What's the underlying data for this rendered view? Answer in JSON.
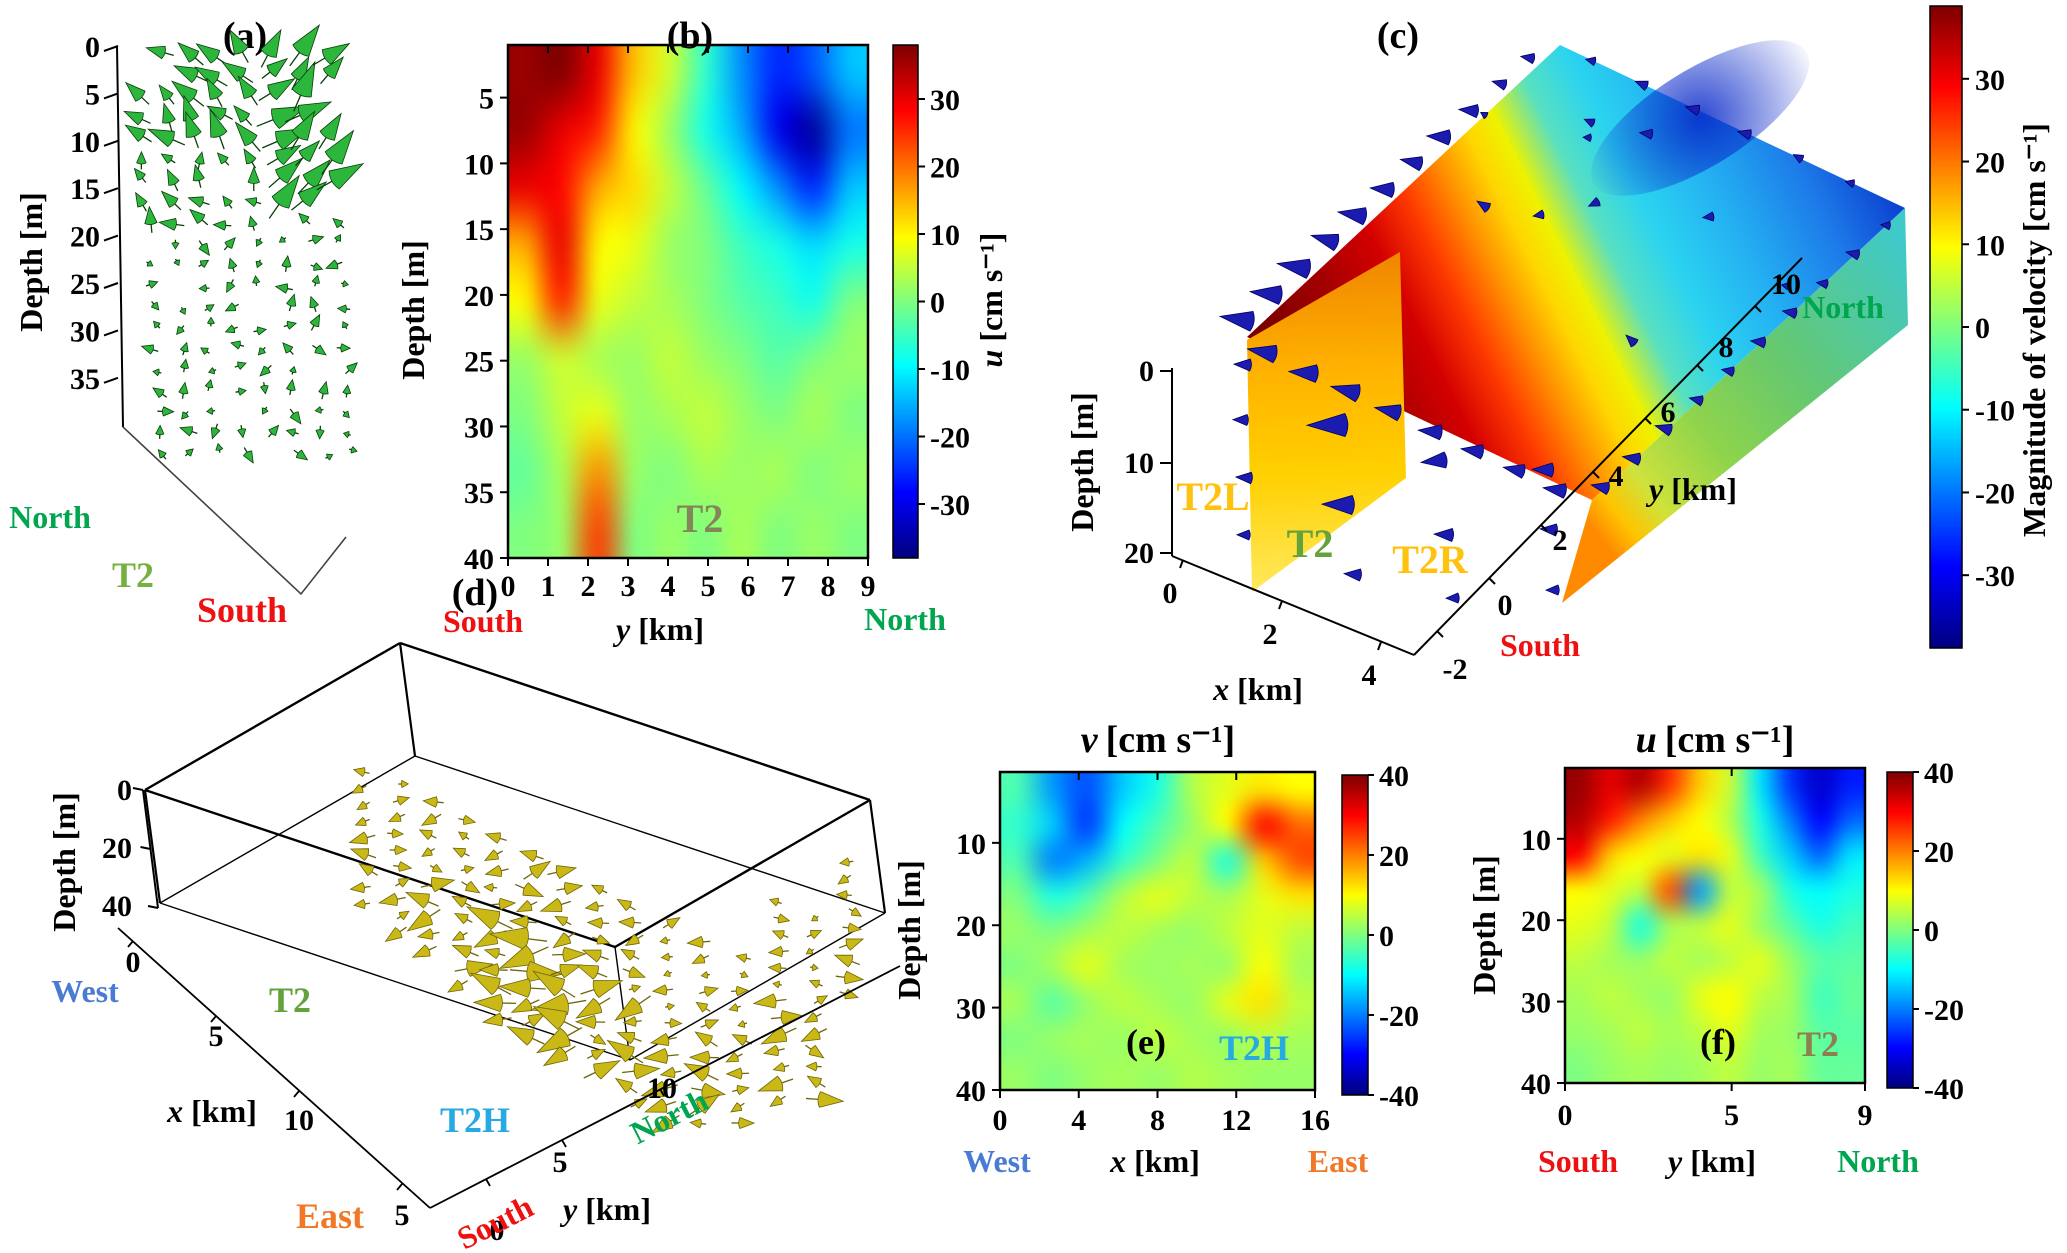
{
  "colors": {
    "north": "#00a550",
    "south": "#ee1111",
    "west": "#4a7bd4",
    "east": "#f07828",
    "t2h": "#27aae1",
    "gold": "#ffc20e",
    "t2_green": "#64a33c",
    "t2_a": "#76b041",
    "t2_olive": "#85855a",
    "t2_f": "#8f7f4e",
    "arrow_a": "#2db63c",
    "arrow_d": "#c9b816",
    "cone_c": "#1b1bb0",
    "black": "#000000"
  },
  "chart_data": [
    {
      "type": "quiver3d",
      "panel_label": "(a)",
      "ylabel": "Depth [m]",
      "yticks": [
        "0",
        "5",
        "10",
        "15",
        "20",
        "25",
        "30",
        "35"
      ],
      "labels": {
        "north": "North",
        "t2": "T2",
        "south": "South"
      },
      "arrow_color": "#2db63c",
      "description": "3D cone vectors of velocity along transect T2 versus depth"
    },
    {
      "type": "heatmap",
      "panel_label": "(b)",
      "ylabel": "Depth [m]",
      "yticks": [
        "5",
        "10",
        "15",
        "20",
        "25",
        "30",
        "35",
        "40"
      ],
      "xlabel_var": "y",
      "xlabel_unit": "[km]",
      "xticks": [
        "0",
        "1",
        "2",
        "3",
        "4",
        "5",
        "6",
        "7",
        "8",
        "9"
      ],
      "labels": {
        "south": "South",
        "north": "North",
        "annotation": "T2"
      },
      "colorbar": {
        "var": "u",
        "unit": "[cm s⁻¹]",
        "ticks": [
          "30",
          "20",
          "10",
          "0",
          "-10",
          "-20",
          "-30"
        ],
        "clim": [
          -38,
          38
        ]
      },
      "grid": {
        "x_km": [
          0,
          1,
          2,
          3,
          4,
          5,
          6,
          7,
          8,
          9
        ],
        "depth_m": [
          2,
          7,
          12,
          17,
          22,
          27,
          32,
          37,
          40
        ],
        "values": [
          [
            36,
            38,
            30,
            14,
            6,
            -6,
            -18,
            -26,
            -22,
            -14
          ],
          [
            36,
            30,
            26,
            10,
            2,
            -8,
            -16,
            -30,
            -36,
            -20
          ],
          [
            30,
            28,
            16,
            12,
            5,
            -2,
            -10,
            -18,
            -26,
            -14
          ],
          [
            16,
            30,
            10,
            8,
            2,
            0,
            -5,
            -8,
            -12,
            -8
          ],
          [
            10,
            26,
            8,
            5,
            3,
            0,
            -3,
            -5,
            -8,
            0
          ],
          [
            2,
            6,
            3,
            2,
            5,
            2,
            0,
            -3,
            0,
            2
          ],
          [
            0,
            5,
            8,
            2,
            3,
            5,
            2,
            0,
            3,
            0
          ],
          [
            -2,
            3,
            18,
            2,
            0,
            3,
            2,
            3,
            0,
            2
          ],
          [
            0,
            2,
            24,
            0,
            2,
            0,
            3,
            0,
            2,
            0
          ]
        ]
      }
    },
    {
      "type": "surface3d",
      "panel_label": "(c)",
      "ylabel": "Depth [m]",
      "depth_ticks": [
        "0",
        "10",
        "20"
      ],
      "xlabel_var": "x",
      "xlabel_unit": "[km]",
      "x_ticks": [
        "0",
        "2",
        "4"
      ],
      "ylabel2_var": "y",
      "ylabel2_unit": "[km]",
      "y_ticks": [
        "-2",
        "0",
        "2",
        "4",
        "6",
        "8",
        "10"
      ],
      "labels": {
        "t2l": "T2L",
        "t2": "T2",
        "t2r": "T2R",
        "north": "North",
        "south": "South"
      },
      "colorbar": {
        "label": "Magnitude of velocity [cm s⁻¹]",
        "ticks": [
          "30",
          "20",
          "10",
          "0",
          "-10",
          "-20",
          "-30"
        ],
        "clim": [
          -38.8,
          38.8
        ]
      },
      "cone_color": "#1b1bb0",
      "description": "3D slice surfaces T2L/T2/T2R colored by velocity magnitude with cone vectors"
    },
    {
      "type": "quiver3d",
      "panel_label": "(d)",
      "ylabel": "Depth [m]",
      "depth_ticks": [
        "0",
        "20",
        "40"
      ],
      "xlabel_var": "x",
      "xlabel_unit": "[km]",
      "x_ticks": [
        "0",
        "5",
        "10",
        "5"
      ],
      "ylabel2_var": "y",
      "ylabel2_unit": "[km]",
      "y_ticks": [
        "0",
        "5",
        "10"
      ],
      "labels": {
        "west": "West",
        "t2": "T2",
        "t2h": "T2H",
        "east": "East",
        "south": "South",
        "north": "North"
      },
      "arrow_color": "#c9b816",
      "description": "3D cone vectors in box over transects T2 and T2H"
    },
    {
      "type": "heatmap",
      "panel_label": "(e)",
      "title_var": "v",
      "title_unit": "[cm s⁻¹]",
      "ylabel": "Depth [m]",
      "yticks": [
        "10",
        "20",
        "30",
        "40"
      ],
      "xlabel_var": "x",
      "xlabel_unit": "[km]",
      "xticks": [
        "0",
        "4",
        "8",
        "12",
        "16"
      ],
      "labels": {
        "west": "West",
        "east": "East",
        "annotation": "T2H"
      },
      "colorbar": {
        "ticks": [
          "40",
          "20",
          "0",
          "-20",
          "-40"
        ],
        "clim": [
          -40,
          40
        ]
      },
      "grid": {
        "x_km": [
          0,
          2,
          4,
          6,
          8,
          10,
          12,
          14,
          16
        ],
        "depth_m": [
          2,
          7,
          12,
          17,
          22,
          27,
          32,
          36,
          40
        ],
        "values": [
          [
            -4,
            -18,
            -24,
            -14,
            -8,
            4,
            8,
            12,
            10
          ],
          [
            -6,
            -14,
            -26,
            -10,
            -4,
            2,
            10,
            30,
            22
          ],
          [
            -4,
            -20,
            -16,
            -6,
            0,
            5,
            -8,
            14,
            24
          ],
          [
            0,
            -8,
            -4,
            4,
            8,
            5,
            3,
            8,
            12
          ],
          [
            2,
            0,
            3,
            5,
            3,
            2,
            5,
            8,
            5
          ],
          [
            0,
            3,
            8,
            3,
            2,
            3,
            2,
            10,
            3
          ],
          [
            3,
            -3,
            2,
            5,
            3,
            2,
            8,
            12,
            5
          ],
          [
            0,
            2,
            3,
            2,
            5,
            3,
            2,
            5,
            3
          ],
          [
            2,
            0,
            2,
            3,
            2,
            4,
            3,
            2,
            2
          ]
        ]
      }
    },
    {
      "type": "heatmap",
      "panel_label": "(f)",
      "title_var": "u",
      "title_unit": "[cm s⁻¹]",
      "ylabel": "Depth [m]",
      "yticks": [
        "10",
        "20",
        "30",
        "40"
      ],
      "xlabel_var": "y",
      "xlabel_unit": "[km]",
      "xticks": [
        "0",
        "5",
        "9"
      ],
      "labels": {
        "south": "South",
        "north": "North",
        "annotation": "T2"
      },
      "colorbar": {
        "ticks": [
          "40",
          "20",
          "0",
          "-20",
          "-40"
        ],
        "clim": [
          -40,
          40
        ]
      },
      "grid": {
        "y_km": [
          0,
          1,
          2,
          3,
          4,
          5,
          6,
          7,
          8,
          9
        ],
        "depth_m": [
          2,
          7,
          12,
          17,
          22,
          27,
          32,
          36,
          40
        ],
        "values": [
          [
            38,
            32,
            36,
            26,
            14,
            6,
            -12,
            -26,
            -34,
            -28
          ],
          [
            36,
            28,
            20,
            14,
            10,
            4,
            -8,
            -20,
            -30,
            -22
          ],
          [
            30,
            14,
            10,
            8,
            12,
            8,
            -5,
            -14,
            -22,
            -12
          ],
          [
            10,
            8,
            5,
            24,
            -18,
            5,
            3,
            -8,
            -10,
            -8
          ],
          [
            8,
            5,
            -8,
            3,
            5,
            8,
            2,
            -3,
            -8,
            -5
          ],
          [
            5,
            3,
            2,
            5,
            3,
            5,
            8,
            2,
            -3,
            -3
          ],
          [
            3,
            5,
            3,
            2,
            8,
            10,
            5,
            3,
            -5,
            -2
          ],
          [
            2,
            3,
            5,
            3,
            5,
            8,
            3,
            2,
            -3,
            -3
          ],
          [
            0,
            2,
            3,
            2,
            3,
            5,
            2,
            3,
            -2,
            -2
          ]
        ]
      }
    }
  ]
}
